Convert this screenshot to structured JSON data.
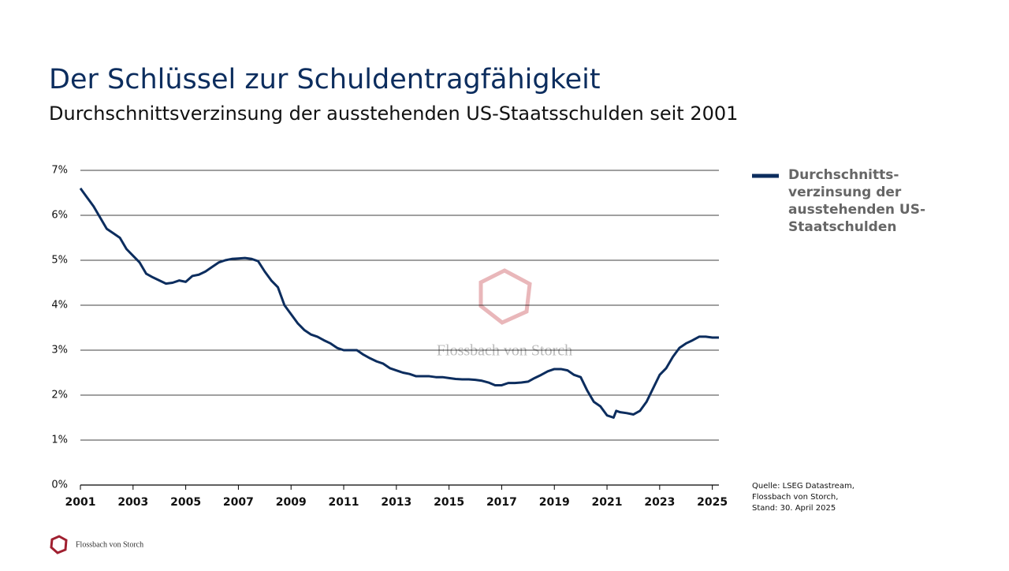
{
  "title": "Der Schlüssel zur Schuldentragfähigkeit",
  "subtitle": "Durchschnittsverzinsung der ausstehenden US-Staatsschulden seit 2001",
  "source": [
    "Quelle: LSEG Datastream,",
    "Flossbach von Storch,",
    "Stand: 30. April 2025"
  ],
  "watermark": "Flossbach von Storch",
  "footer": "Flossbach von Storch",
  "chart_data": {
    "type": "line",
    "x": [
      2001,
      2001.25,
      2001.5,
      2001.75,
      2002,
      2002.25,
      2002.5,
      2002.75,
      2003,
      2003.25,
      2003.5,
      2003.75,
      2004,
      2004.25,
      2004.5,
      2004.75,
      2005,
      2005.25,
      2005.5,
      2005.75,
      2006,
      2006.25,
      2006.5,
      2006.75,
      2007,
      2007.25,
      2007.5,
      2007.75,
      2008,
      2008.25,
      2008.5,
      2008.75,
      2009,
      2009.25,
      2009.5,
      2009.75,
      2010,
      2010.25,
      2010.5,
      2010.75,
      2011,
      2011.25,
      2011.5,
      2011.75,
      2012,
      2012.25,
      2012.5,
      2012.75,
      2013,
      2013.25,
      2013.5,
      2013.75,
      2014,
      2014.25,
      2014.5,
      2014.75,
      2015,
      2015.25,
      2015.5,
      2015.75,
      2016,
      2016.25,
      2016.5,
      2016.75,
      2017,
      2017.25,
      2017.5,
      2017.75,
      2018,
      2018.25,
      2018.5,
      2018.75,
      2019,
      2019.25,
      2019.5,
      2019.75,
      2020,
      2020.25,
      2020.5,
      2020.75,
      2021,
      2021.25,
      2021.35,
      2021.5,
      2021.75,
      2022,
      2022.25,
      2022.5,
      2022.75,
      2023,
      2023.25,
      2023.5,
      2023.75,
      2024,
      2024.25,
      2024.5,
      2024.75,
      2025,
      2025.25
    ],
    "series": [
      {
        "name": "Durchschnitts-verzinsung der ausstehenden US-Staatschulden",
        "color": "#0c2d5e",
        "values": [
          6.6,
          6.4,
          6.2,
          5.95,
          5.7,
          5.6,
          5.5,
          5.25,
          5.1,
          4.95,
          4.7,
          4.62,
          4.55,
          4.48,
          4.5,
          4.55,
          4.52,
          4.65,
          4.68,
          4.75,
          4.85,
          4.95,
          5.0,
          5.03,
          5.04,
          5.05,
          5.03,
          4.98,
          4.75,
          4.55,
          4.4,
          4.0,
          3.8,
          3.6,
          3.45,
          3.35,
          3.3,
          3.22,
          3.15,
          3.05,
          3.0,
          3.0,
          3.0,
          2.9,
          2.82,
          2.75,
          2.7,
          2.6,
          2.55,
          2.5,
          2.47,
          2.42,
          2.42,
          2.42,
          2.4,
          2.4,
          2.38,
          2.36,
          2.35,
          2.35,
          2.34,
          2.32,
          2.28,
          2.22,
          2.22,
          2.27,
          2.27,
          2.28,
          2.3,
          2.38,
          2.45,
          2.53,
          2.58,
          2.58,
          2.55,
          2.45,
          2.4,
          2.1,
          1.85,
          1.75,
          1.55,
          1.5,
          1.65,
          1.62,
          1.6,
          1.57,
          1.65,
          1.85,
          2.15,
          2.45,
          2.6,
          2.85,
          3.05,
          3.15,
          3.22,
          3.3,
          3.3,
          3.28,
          3.28
        ]
      }
    ],
    "xlim": [
      2001,
      2025.25
    ],
    "xticks": [
      2001,
      2003,
      2005,
      2007,
      2009,
      2011,
      2013,
      2015,
      2017,
      2019,
      2021,
      2023,
      2025
    ],
    "ylim": [
      0,
      7
    ],
    "yticks": [
      {
        "value": 0,
        "label": "0%"
      },
      {
        "value": 1,
        "label": "1%"
      },
      {
        "value": 2,
        "label": "2%"
      },
      {
        "value": 3,
        "label": "3%"
      },
      {
        "value": 4,
        "label": "4%"
      },
      {
        "value": 5,
        "label": "5%"
      },
      {
        "value": 6,
        "label": "6%"
      },
      {
        "value": 7,
        "label": "7%"
      }
    ],
    "grid": true,
    "legend": "right"
  }
}
